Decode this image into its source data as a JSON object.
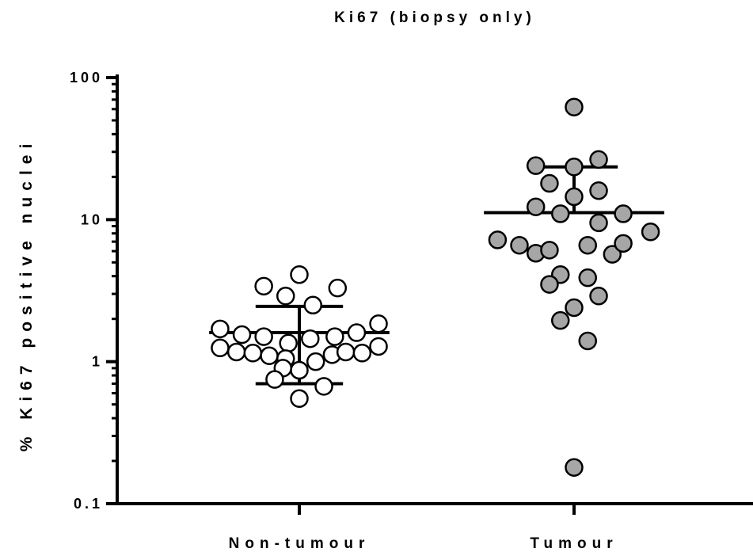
{
  "chart_data": {
    "type": "scatter",
    "title": "Ki67 (biopsy only)",
    "ylabel": "% Ki67 positive nuclei",
    "xlabel": "",
    "yscale": "log",
    "ylim": [
      0.1,
      100
    ],
    "yticks": [
      {
        "value": 100,
        "label": "100"
      },
      {
        "value": 10,
        "label": "10"
      },
      {
        "value": 1,
        "label": "1"
      },
      {
        "value": 0.1,
        "label": "0.1"
      }
    ],
    "categories": [
      "Non-tumour",
      "Tumour"
    ],
    "groups": [
      {
        "category": "Non-tumour",
        "fill": "#ffffff",
        "stroke": "#000000",
        "points": [
          {
            "x": -0.13,
            "y": 3.4
          },
          {
            "x": 0.0,
            "y": 4.1
          },
          {
            "x": -0.05,
            "y": 2.9
          },
          {
            "x": 0.14,
            "y": 3.3
          },
          {
            "x": 0.05,
            "y": 2.5
          },
          {
            "x": -0.29,
            "y": 1.7
          },
          {
            "x": -0.21,
            "y": 1.55
          },
          {
            "x": -0.13,
            "y": 1.5
          },
          {
            "x": -0.04,
            "y": 1.35
          },
          {
            "x": 0.04,
            "y": 1.45
          },
          {
            "x": 0.13,
            "y": 1.5
          },
          {
            "x": 0.21,
            "y": 1.6
          },
          {
            "x": 0.29,
            "y": 1.85
          },
          {
            "x": -0.29,
            "y": 1.25
          },
          {
            "x": -0.23,
            "y": 1.17
          },
          {
            "x": -0.17,
            "y": 1.15
          },
          {
            "x": -0.11,
            "y": 1.1
          },
          {
            "x": -0.05,
            "y": 1.05
          },
          {
            "x": 0.06,
            "y": 1.0
          },
          {
            "x": 0.12,
            "y": 1.12
          },
          {
            "x": 0.17,
            "y": 1.17
          },
          {
            "x": 0.23,
            "y": 1.15
          },
          {
            "x": 0.29,
            "y": 1.28
          },
          {
            "x": -0.06,
            "y": 0.9
          },
          {
            "x": 0.0,
            "y": 0.87
          },
          {
            "x": -0.09,
            "y": 0.75
          },
          {
            "x": 0.09,
            "y": 0.67
          },
          {
            "x": 0.0,
            "y": 0.55
          }
        ],
        "mean": 1.6,
        "upper": 2.45,
        "lower": 0.7,
        "mean_halfwidth": 0.33,
        "err_halfwidth": 0.16
      },
      {
        "category": "Tumour",
        "fill": "#a6a6a6",
        "stroke": "#000000",
        "points": [
          {
            "x": 0.0,
            "y": 62
          },
          {
            "x": -0.14,
            "y": 24
          },
          {
            "x": 0.0,
            "y": 23.5
          },
          {
            "x": 0.09,
            "y": 26.5
          },
          {
            "x": -0.09,
            "y": 18
          },
          {
            "x": 0.0,
            "y": 14.5
          },
          {
            "x": 0.09,
            "y": 16
          },
          {
            "x": -0.14,
            "y": 12.3
          },
          {
            "x": -0.05,
            "y": 11
          },
          {
            "x": 0.09,
            "y": 9.5
          },
          {
            "x": 0.18,
            "y": 11
          },
          {
            "x": -0.28,
            "y": 7.2
          },
          {
            "x": -0.2,
            "y": 6.6
          },
          {
            "x": -0.14,
            "y": 5.8
          },
          {
            "x": -0.09,
            "y": 6.1
          },
          {
            "x": 0.05,
            "y": 6.6
          },
          {
            "x": 0.14,
            "y": 5.7
          },
          {
            "x": 0.18,
            "y": 6.8
          },
          {
            "x": 0.28,
            "y": 8.2
          },
          {
            "x": -0.05,
            "y": 4.1
          },
          {
            "x": -0.09,
            "y": 3.5
          },
          {
            "x": 0.05,
            "y": 3.9
          },
          {
            "x": 0.09,
            "y": 2.9
          },
          {
            "x": 0.0,
            "y": 2.4
          },
          {
            "x": -0.05,
            "y": 1.95
          },
          {
            "x": 0.05,
            "y": 1.4
          },
          {
            "x": 0.0,
            "y": 0.18
          }
        ],
        "mean": 11.2,
        "upper": 23.5,
        "lower": null,
        "mean_halfwidth": 0.33,
        "err_halfwidth": 0.16
      }
    ],
    "grid": false,
    "legend": "none"
  }
}
